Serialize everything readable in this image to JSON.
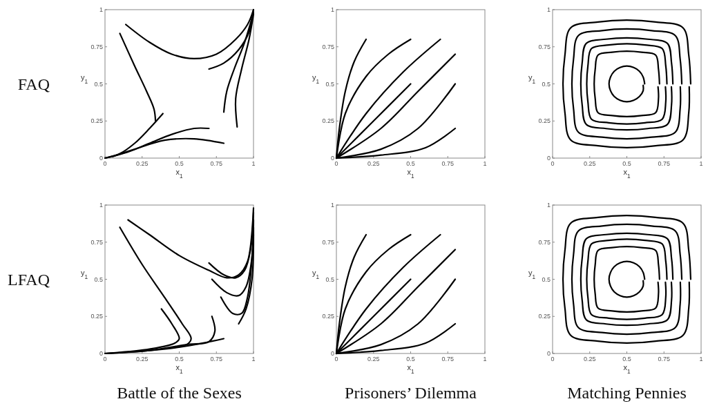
{
  "chart_data": [
    {
      "type": "line",
      "annotations": [
        "FAQ"
      ],
      "xlabel": "x$_{1}$",
      "ylabel": "y$_{1}$",
      "xlim": [
        0,
        1
      ],
      "ylim": [
        0,
        1
      ],
      "xticks": [
        0,
        0.25,
        0.5,
        0.75,
        1
      ],
      "yticks": [
        0,
        0.25,
        0.5,
        0.75,
        1
      ],
      "series": [
        {
          "color": "#000000",
          "x": [
            0.14,
            0.3,
            0.45,
            0.6,
            0.75,
            0.88,
            0.96,
            1
          ],
          "values": [
            0.9,
            0.78,
            0.7,
            0.67,
            0.7,
            0.8,
            0.9,
            1
          ]
        },
        {
          "color": "#000000",
          "x": [
            0.1,
            0.2,
            0.28,
            0.33,
            0.34
          ],
          "values": [
            0.84,
            0.62,
            0.45,
            0.33,
            0.25
          ]
        },
        {
          "color": "#000000",
          "x": [
            0,
            0.1,
            0.2,
            0.3,
            0.39
          ],
          "values": [
            0,
            0.03,
            0.1,
            0.2,
            0.3
          ]
        },
        {
          "color": "#000000",
          "x": [
            0,
            0.15,
            0.3,
            0.45,
            0.6,
            0.7
          ],
          "values": [
            0,
            0.04,
            0.1,
            0.16,
            0.2,
            0.2
          ]
        },
        {
          "color": "#000000",
          "x": [
            0.05,
            0.2,
            0.4,
            0.6,
            0.8
          ],
          "values": [
            0.01,
            0.06,
            0.12,
            0.13,
            0.1
          ]
        },
        {
          "color": "#000000",
          "x": [
            0.7,
            0.8,
            0.9,
            0.97,
            1
          ],
          "values": [
            0.6,
            0.64,
            0.73,
            0.85,
            1
          ]
        },
        {
          "color": "#000000",
          "x": [
            0.8,
            0.82,
            0.87,
            0.94,
            1
          ],
          "values": [
            0.31,
            0.45,
            0.6,
            0.78,
            0.98
          ]
        },
        {
          "color": "#000000",
          "x": [
            0.89,
            0.88,
            0.92,
            0.97,
            1
          ],
          "values": [
            0.21,
            0.4,
            0.6,
            0.8,
            0.97
          ]
        }
      ]
    },
    {
      "type": "line",
      "xlabel": "x$_{1}$",
      "ylabel": "y$_{1}$",
      "xlim": [
        0,
        1
      ],
      "ylim": [
        0,
        1
      ],
      "xticks": [
        0,
        0.25,
        0.5,
        0.75,
        1
      ],
      "yticks": [
        0,
        0.25,
        0.5,
        0.75,
        1
      ],
      "series": [
        {
          "color": "#000000",
          "x": [
            0,
            0.02,
            0.06,
            0.12,
            0.2
          ],
          "values": [
            0,
            0.2,
            0.45,
            0.65,
            0.8
          ]
        },
        {
          "color": "#000000",
          "x": [
            0,
            0.06,
            0.2,
            0.35,
            0.5
          ],
          "values": [
            0,
            0.3,
            0.55,
            0.7,
            0.8
          ]
        },
        {
          "color": "#000000",
          "x": [
            0,
            0.2,
            0.45,
            0.7
          ],
          "values": [
            0,
            0.3,
            0.58,
            0.8
          ]
        },
        {
          "color": "#000000",
          "x": [
            0,
            0.25,
            0.5
          ],
          "values": [
            0,
            0.25,
            0.5
          ]
        },
        {
          "color": "#000000",
          "x": [
            0,
            0.3,
            0.55,
            0.8
          ],
          "values": [
            0,
            0.2,
            0.45,
            0.7
          ]
        },
        {
          "color": "#000000",
          "x": [
            0,
            0.3,
            0.55,
            0.8
          ],
          "values": [
            0,
            0.06,
            0.2,
            0.5
          ]
        },
        {
          "color": "#000000",
          "x": [
            0,
            0.3,
            0.6,
            0.8
          ],
          "values": [
            0,
            0.02,
            0.07,
            0.2
          ]
        }
      ]
    },
    {
      "type": "line",
      "xlabel": "x$_{1}$",
      "ylabel": "y$_{1}$",
      "xlim": [
        0,
        1
      ],
      "ylim": [
        0,
        1
      ],
      "xticks": [
        0,
        0.25,
        0.5,
        0.75,
        1
      ],
      "yticks": [
        0,
        0.25,
        0.5,
        0.75,
        1
      ],
      "series": [
        {
          "color": "#000000",
          "x": [
            0.93,
            0.917,
            0.878,
            0.694,
            0.5,
            0.306,
            0.122,
            0.083,
            0.07,
            0.083,
            0.122,
            0.306,
            0.5,
            0.694,
            0.878,
            0.917,
            0.92
          ],
          "values": [
            0.5,
            0.694,
            0.878,
            0.917,
            0.93,
            0.917,
            0.878,
            0.694,
            0.5,
            0.306,
            0.122,
            0.083,
            0.07,
            0.083,
            0.122,
            0.306,
            0.48
          ]
        },
        {
          "color": "#000000",
          "x": [
            0.87,
            0.859,
            0.826,
            0.667,
            0.5,
            0.333,
            0.174,
            0.141,
            0.13,
            0.141,
            0.174,
            0.333,
            0.5,
            0.667,
            0.826,
            0.859,
            0.86
          ],
          "values": [
            0.5,
            0.667,
            0.826,
            0.859,
            0.87,
            0.859,
            0.826,
            0.667,
            0.5,
            0.333,
            0.174,
            0.141,
            0.13,
            0.141,
            0.174,
            0.333,
            0.48
          ]
        },
        {
          "color": "#000000",
          "x": [
            0.81,
            0.801,
            0.773,
            0.64,
            0.5,
            0.36,
            0.227,
            0.199,
            0.19,
            0.199,
            0.227,
            0.36,
            0.5,
            0.64,
            0.773,
            0.801,
            0.8
          ],
          "values": [
            0.5,
            0.64,
            0.773,
            0.801,
            0.81,
            0.801,
            0.773,
            0.64,
            0.5,
            0.36,
            0.227,
            0.199,
            0.19,
            0.199,
            0.227,
            0.36,
            0.48
          ]
        },
        {
          "color": "#000000",
          "x": [
            0.77,
            0.762,
            0.738,
            0.622,
            0.5,
            0.378,
            0.262,
            0.238,
            0.23,
            0.238,
            0.262,
            0.378,
            0.5,
            0.622,
            0.738,
            0.762,
            0.76
          ],
          "values": [
            0.5,
            0.622,
            0.738,
            0.762,
            0.77,
            0.762,
            0.738,
            0.622,
            0.5,
            0.378,
            0.262,
            0.238,
            0.23,
            0.238,
            0.262,
            0.378,
            0.48
          ]
        },
        {
          "color": "#000000",
          "x": [
            0.72,
            0.713,
            0.694,
            0.599,
            0.5,
            0.401,
            0.306,
            0.287,
            0.28,
            0.287,
            0.306,
            0.401,
            0.5,
            0.599,
            0.694,
            0.713,
            0.71
          ],
          "values": [
            0.5,
            0.599,
            0.694,
            0.713,
            0.72,
            0.713,
            0.694,
            0.599,
            0.5,
            0.401,
            0.306,
            0.287,
            0.28,
            0.287,
            0.306,
            0.401,
            0.48
          ]
        },
        {
          "color": "#000000",
          "x": [
            0.62,
            0.61,
            0.585,
            0.546,
            0.5,
            0.454,
            0.415,
            0.39,
            0.38,
            0.39,
            0.415,
            0.454,
            0.5,
            0.546,
            0.585,
            0.61,
            0.61
          ],
          "values": [
            0.5,
            0.546,
            0.585,
            0.61,
            0.62,
            0.61,
            0.585,
            0.546,
            0.5,
            0.454,
            0.415,
            0.39,
            0.38,
            0.39,
            0.415,
            0.454,
            0.49
          ]
        }
      ]
    },
    {
      "type": "line",
      "title": "Battle of the Sexes",
      "annotations": [
        "LFAQ"
      ],
      "xlabel": "x$_{1}$",
      "ylabel": "y$_{1}$",
      "xlim": [
        0,
        1
      ],
      "ylim": [
        0,
        1
      ],
      "xticks": [
        0,
        0.25,
        0.5,
        0.75,
        1
      ],
      "yticks": [
        0,
        0.25,
        0.5,
        0.75,
        1
      ],
      "series": [
        {
          "color": "#000000",
          "x": [
            0.155,
            0.3,
            0.5,
            0.7,
            0.82,
            0.9,
            0.96,
            1
          ],
          "values": [
            0.9,
            0.8,
            0.66,
            0.56,
            0.51,
            0.53,
            0.62,
            0.98
          ]
        },
        {
          "color": "#000000",
          "x": [
            0.7,
            0.8,
            0.88,
            0.94,
            0.98,
            1
          ],
          "values": [
            0.61,
            0.53,
            0.51,
            0.56,
            0.7,
            0.95
          ]
        },
        {
          "color": "#000000",
          "x": [
            0.72,
            0.82,
            0.9,
            0.95,
            0.99,
            1
          ],
          "values": [
            0.5,
            0.41,
            0.39,
            0.45,
            0.65,
            0.9
          ]
        },
        {
          "color": "#000000",
          "x": [
            0.78,
            0.86,
            0.92,
            0.96,
            1
          ],
          "values": [
            0.38,
            0.27,
            0.27,
            0.38,
            0.8
          ]
        },
        {
          "color": "#000000",
          "x": [
            0.9,
            0.95,
            0.99,
            1
          ],
          "values": [
            0.2,
            0.3,
            0.5,
            0.85
          ]
        },
        {
          "color": "#000000",
          "x": [
            0.1,
            0.25,
            0.4,
            0.52,
            0.58,
            0.55,
            0.45
          ],
          "values": [
            0.85,
            0.6,
            0.38,
            0.2,
            0.1,
            0.06,
            0.04
          ]
        },
        {
          "color": "#000000",
          "x": [
            0.38,
            0.45,
            0.5,
            0.47,
            0.3,
            0
          ],
          "values": [
            0.3,
            0.2,
            0.1,
            0.07,
            0.03,
            0
          ]
        },
        {
          "color": "#000000",
          "x": [
            0.72,
            0.74,
            0.7,
            0.55,
            0.3,
            0
          ],
          "values": [
            0.25,
            0.15,
            0.08,
            0.06,
            0.02,
            0
          ]
        },
        {
          "color": "#000000",
          "x": [
            0,
            0.3,
            0.55,
            0.8
          ],
          "values": [
            0,
            0.02,
            0.05,
            0.1
          ]
        }
      ]
    },
    {
      "type": "line",
      "title": "Prisoners’ Dilemma",
      "xlabel": "x$_{1}$",
      "ylabel": "y$_{1}$",
      "xlim": [
        0,
        1
      ],
      "ylim": [
        0,
        1
      ],
      "xticks": [
        0,
        0.25,
        0.5,
        0.75,
        1
      ],
      "yticks": [
        0,
        0.25,
        0.5,
        0.75,
        1
      ],
      "series": [
        {
          "color": "#000000",
          "x": [
            0,
            0.02,
            0.06,
            0.12,
            0.2
          ],
          "values": [
            0,
            0.2,
            0.45,
            0.65,
            0.8
          ]
        },
        {
          "color": "#000000",
          "x": [
            0,
            0.06,
            0.2,
            0.35,
            0.5
          ],
          "values": [
            0,
            0.3,
            0.55,
            0.7,
            0.8
          ]
        },
        {
          "color": "#000000",
          "x": [
            0,
            0.2,
            0.45,
            0.7
          ],
          "values": [
            0,
            0.3,
            0.58,
            0.8
          ]
        },
        {
          "color": "#000000",
          "x": [
            0,
            0.25,
            0.5
          ],
          "values": [
            0,
            0.25,
            0.5
          ]
        },
        {
          "color": "#000000",
          "x": [
            0,
            0.3,
            0.55,
            0.8
          ],
          "values": [
            0,
            0.2,
            0.45,
            0.7
          ]
        },
        {
          "color": "#000000",
          "x": [
            0,
            0.3,
            0.55,
            0.8
          ],
          "values": [
            0,
            0.06,
            0.2,
            0.5
          ]
        },
        {
          "color": "#000000",
          "x": [
            0,
            0.3,
            0.6,
            0.8
          ],
          "values": [
            0,
            0.02,
            0.07,
            0.2
          ]
        }
      ]
    },
    {
      "type": "line",
      "title": "Matching Pennies",
      "xlabel": "x$_{1}$",
      "ylabel": "y$_{1}$",
      "xlim": [
        0,
        1
      ],
      "ylim": [
        0,
        1
      ],
      "xticks": [
        0,
        0.25,
        0.5,
        0.75,
        1
      ],
      "yticks": [
        0,
        0.25,
        0.5,
        0.75,
        1
      ],
      "series": [
        {
          "color": "#000000",
          "x": [
            0.93,
            0.917,
            0.878,
            0.694,
            0.5,
            0.306,
            0.122,
            0.083,
            0.07,
            0.083,
            0.122,
            0.306,
            0.5,
            0.694,
            0.878,
            0.917,
            0.92
          ],
          "values": [
            0.5,
            0.694,
            0.878,
            0.917,
            0.93,
            0.917,
            0.878,
            0.694,
            0.5,
            0.306,
            0.122,
            0.083,
            0.07,
            0.083,
            0.122,
            0.306,
            0.48
          ]
        },
        {
          "color": "#000000",
          "x": [
            0.87,
            0.859,
            0.826,
            0.667,
            0.5,
            0.333,
            0.174,
            0.141,
            0.13,
            0.141,
            0.174,
            0.333,
            0.5,
            0.667,
            0.826,
            0.859,
            0.86
          ],
          "values": [
            0.5,
            0.667,
            0.826,
            0.859,
            0.87,
            0.859,
            0.826,
            0.667,
            0.5,
            0.333,
            0.174,
            0.141,
            0.13,
            0.141,
            0.174,
            0.333,
            0.48
          ]
        },
        {
          "color": "#000000",
          "x": [
            0.81,
            0.801,
            0.773,
            0.64,
            0.5,
            0.36,
            0.227,
            0.199,
            0.19,
            0.199,
            0.227,
            0.36,
            0.5,
            0.64,
            0.773,
            0.801,
            0.8
          ],
          "values": [
            0.5,
            0.64,
            0.773,
            0.801,
            0.81,
            0.801,
            0.773,
            0.64,
            0.5,
            0.36,
            0.227,
            0.199,
            0.19,
            0.199,
            0.227,
            0.36,
            0.48
          ]
        },
        {
          "color": "#000000",
          "x": [
            0.77,
            0.762,
            0.738,
            0.622,
            0.5,
            0.378,
            0.262,
            0.238,
            0.23,
            0.238,
            0.262,
            0.378,
            0.5,
            0.622,
            0.738,
            0.762,
            0.76
          ],
          "values": [
            0.5,
            0.622,
            0.738,
            0.762,
            0.77,
            0.762,
            0.738,
            0.622,
            0.5,
            0.378,
            0.262,
            0.238,
            0.23,
            0.238,
            0.262,
            0.378,
            0.48
          ]
        },
        {
          "color": "#000000",
          "x": [
            0.72,
            0.713,
            0.694,
            0.599,
            0.5,
            0.401,
            0.306,
            0.287,
            0.28,
            0.287,
            0.306,
            0.401,
            0.5,
            0.599,
            0.694,
            0.713,
            0.71
          ],
          "values": [
            0.5,
            0.599,
            0.694,
            0.713,
            0.72,
            0.713,
            0.694,
            0.599,
            0.5,
            0.401,
            0.306,
            0.287,
            0.28,
            0.287,
            0.306,
            0.401,
            0.48
          ]
        },
        {
          "color": "#000000",
          "x": [
            0.62,
            0.61,
            0.585,
            0.546,
            0.5,
            0.454,
            0.415,
            0.39,
            0.38,
            0.39,
            0.415,
            0.454,
            0.5,
            0.546,
            0.585,
            0.61,
            0.61
          ],
          "values": [
            0.5,
            0.546,
            0.585,
            0.61,
            0.62,
            0.61,
            0.585,
            0.546,
            0.5,
            0.454,
            0.415,
            0.39,
            0.38,
            0.39,
            0.415,
            0.454,
            0.49
          ]
        }
      ]
    }
  ]
}
